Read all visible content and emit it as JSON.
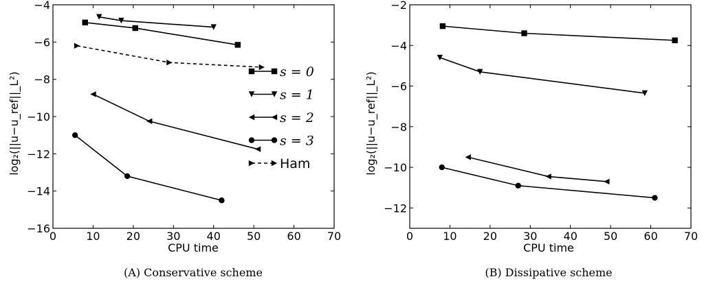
{
  "chart_data": [
    {
      "type": "line",
      "caption": "(A) Conservative scheme",
      "xlabel": "CPU time",
      "ylabel": "log₂(||u−u_ref||_L²)",
      "xlim": [
        0,
        70
      ],
      "ylim": [
        -16,
        -4
      ],
      "xticks": [
        "0",
        "10",
        "20",
        "30",
        "40",
        "50",
        "60",
        "70"
      ],
      "yticks": [
        "−4",
        "−6",
        "−8",
        "−10",
        "−12",
        "−14",
        "−16"
      ],
      "legend_position": "center-right",
      "series": [
        {
          "name": "s = 0",
          "marker": "square",
          "dash": false,
          "x": [
            8,
            20.5,
            46
          ],
          "y": [
            -4.95,
            -5.25,
            -6.15
          ]
        },
        {
          "name": "s = 1",
          "marker": "triangle-down",
          "dash": false,
          "x": [
            11.5,
            17,
            40
          ],
          "y": [
            -4.65,
            -4.85,
            -5.2
          ]
        },
        {
          "name": "s = 2",
          "marker": "triangle-left",
          "dash": false,
          "x": [
            10,
            24,
            51
          ],
          "y": [
            -8.8,
            -10.25,
            -11.75
          ]
        },
        {
          "name": "s = 3",
          "marker": "circle",
          "dash": false,
          "x": [
            5.5,
            18.5,
            42
          ],
          "y": [
            -11,
            -13.2,
            -14.5
          ]
        },
        {
          "name": "Ham",
          "marker": "triangle-right",
          "dash": true,
          "x": [
            6,
            29,
            52
          ],
          "y": [
            -6.2,
            -7.1,
            -7.35
          ]
        }
      ]
    },
    {
      "type": "line",
      "caption": "(B) Dissipative scheme",
      "xlabel": "CPU time",
      "ylabel": "log₂(||u−u_ref||_L²)",
      "xlim": [
        0,
        70
      ],
      "ylim": [
        -13,
        -2
      ],
      "xticks": [
        "0",
        "10",
        "20",
        "30",
        "40",
        "50",
        "60",
        "70"
      ],
      "yticks": [
        "−2",
        "−4",
        "−6",
        "−8",
        "−10",
        "−12"
      ],
      "series": [
        {
          "marker": "square",
          "dash": false,
          "x": [
            8.2,
            28.5,
            66
          ],
          "y": [
            -3.05,
            -3.4,
            -3.75
          ]
        },
        {
          "marker": "triangle-down",
          "dash": false,
          "x": [
            7.5,
            17.5,
            58.5
          ],
          "y": [
            -4.6,
            -5.3,
            -6.35
          ]
        },
        {
          "marker": "triangle-left",
          "dash": false,
          "x": [
            14.5,
            34.5,
            49
          ],
          "y": [
            -9.5,
            -10.45,
            -10.7
          ]
        },
        {
          "marker": "circle",
          "dash": false,
          "x": [
            8,
            27,
            61
          ],
          "y": [
            -10,
            -10.9,
            -11.5
          ]
        }
      ]
    }
  ]
}
